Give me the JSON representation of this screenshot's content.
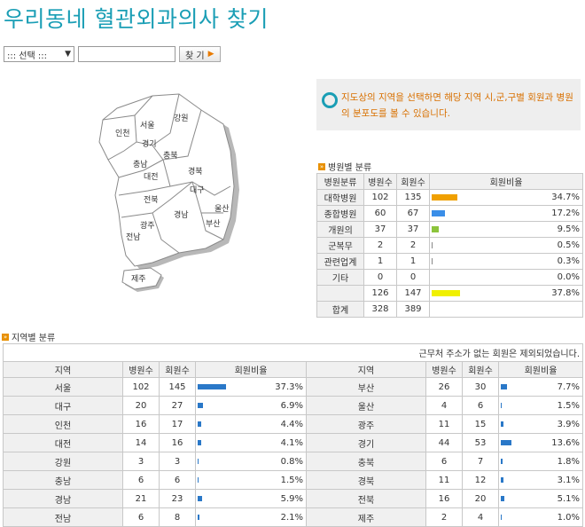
{
  "page_title": "우리동네 혈관외과의사 찾기",
  "search": {
    "select_value": "::: 선택 :::",
    "input_value": "",
    "button_label": "찾 기"
  },
  "info_text": "지도상의 지역을 선택하면 해당 지역 시,군,구별 회원과 병원의 분포도를 볼 수 있습니다.",
  "map_regions": [
    "서울",
    "강원",
    "인천",
    "경기",
    "충북",
    "충남",
    "대전",
    "경북",
    "대구",
    "전북",
    "경남",
    "울산",
    "광주",
    "부산",
    "전남",
    "제주"
  ],
  "hospital_section": {
    "title": "병원별 분류",
    "headers": [
      "병원분류",
      "병원수",
      "회원수",
      "회원비율"
    ],
    "rows": [
      {
        "category": "대학병원",
        "hospitals": "102",
        "members": "135",
        "ratio": "34.7%",
        "bar_color": "#f0a000",
        "ratio_value": 34.7
      },
      {
        "category": "종합병원",
        "hospitals": "60",
        "members": "67",
        "ratio": "17.2%",
        "bar_color": "#3a8ee8",
        "ratio_value": 17.2
      },
      {
        "category": "개원의",
        "hospitals": "37",
        "members": "37",
        "ratio": "9.5%",
        "bar_color": "#8cc43c",
        "ratio_value": 9.5
      },
      {
        "category": "군복무",
        "hospitals": "2",
        "members": "2",
        "ratio": "0.5%",
        "bar_color": "#888888",
        "ratio_value": 0.5
      },
      {
        "category": "관련업계",
        "hospitals": "1",
        "members": "1",
        "ratio": "0.3%",
        "bar_color": "#888888",
        "ratio_value": 0.3
      },
      {
        "category": "기타",
        "hospitals": "0",
        "members": "0",
        "ratio": "0.0%",
        "bar_color": "#888888",
        "ratio_value": 0.0
      },
      {
        "category": "",
        "hospitals": "126",
        "members": "147",
        "ratio": "37.8%",
        "bar_color": "#f0f000",
        "ratio_value": 37.8
      }
    ],
    "total": {
      "label": "합계",
      "hospitals": "328",
      "members": "389"
    }
  },
  "region_section": {
    "title": "지역별 분류",
    "note": "근무처 주소가 없는 회원은 제외되었습니다.",
    "headers": [
      "지역",
      "병원수",
      "회원수",
      "회원비율",
      "지역",
      "병원수",
      "회원수",
      "회원비율"
    ],
    "rows": [
      [
        {
          "region": "서울",
          "hospitals": "102",
          "members": "145",
          "ratio": "37.3%",
          "ratio_value": 37.3
        },
        {
          "region": "부산",
          "hospitals": "26",
          "members": "30",
          "ratio": "7.7%",
          "ratio_value": 7.7
        }
      ],
      [
        {
          "region": "대구",
          "hospitals": "20",
          "members": "27",
          "ratio": "6.9%",
          "ratio_value": 6.9
        },
        {
          "region": "울산",
          "hospitals": "4",
          "members": "6",
          "ratio": "1.5%",
          "ratio_value": 1.5
        }
      ],
      [
        {
          "region": "인천",
          "hospitals": "16",
          "members": "17",
          "ratio": "4.4%",
          "ratio_value": 4.4
        },
        {
          "region": "광주",
          "hospitals": "11",
          "members": "15",
          "ratio": "3.9%",
          "ratio_value": 3.9
        }
      ],
      [
        {
          "region": "대전",
          "hospitals": "14",
          "members": "16",
          "ratio": "4.1%",
          "ratio_value": 4.1
        },
        {
          "region": "경기",
          "hospitals": "44",
          "members": "53",
          "ratio": "13.6%",
          "ratio_value": 13.6
        }
      ],
      [
        {
          "region": "강원",
          "hospitals": "3",
          "members": "3",
          "ratio": "0.8%",
          "ratio_value": 0.8
        },
        {
          "region": "충북",
          "hospitals": "6",
          "members": "7",
          "ratio": "1.8%",
          "ratio_value": 1.8
        }
      ],
      [
        {
          "region": "충남",
          "hospitals": "6",
          "members": "6",
          "ratio": "1.5%",
          "ratio_value": 1.5
        },
        {
          "region": "경북",
          "hospitals": "11",
          "members": "12",
          "ratio": "3.1%",
          "ratio_value": 3.1
        }
      ],
      [
        {
          "region": "경남",
          "hospitals": "21",
          "members": "23",
          "ratio": "5.9%",
          "ratio_value": 5.9
        },
        {
          "region": "전북",
          "hospitals": "16",
          "members": "20",
          "ratio": "5.1%",
          "ratio_value": 5.1
        }
      ],
      [
        {
          "region": "전남",
          "hospitals": "6",
          "members": "8",
          "ratio": "2.1%",
          "ratio_value": 2.1
        },
        {
          "region": "제주",
          "hospitals": "2",
          "members": "4",
          "ratio": "1.0%",
          "ratio_value": 1.0
        }
      ]
    ]
  }
}
